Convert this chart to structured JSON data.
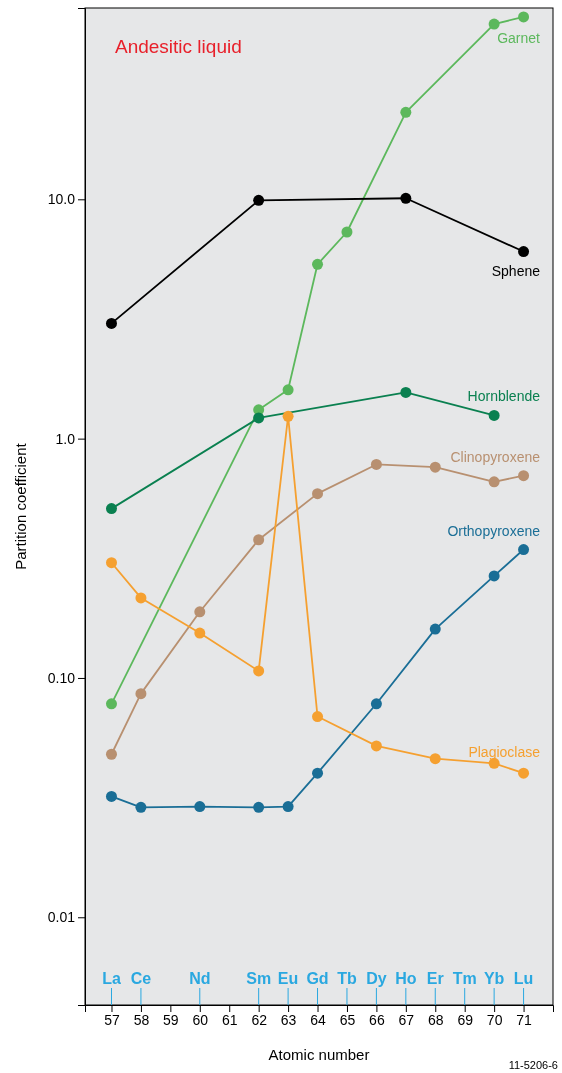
{
  "chart_data": {
    "type": "line",
    "title": "Andesitic liquid",
    "xlabel": "Atomic number",
    "ylabel": "Partition coefficient",
    "log": "y",
    "grid": false,
    "marker": "circle",
    "line_style": "solid",
    "xlim": [
      56.1,
      72.0
    ],
    "xticks": [
      57,
      58,
      59,
      60,
      61,
      62,
      63,
      64,
      65,
      66,
      67,
      68,
      69,
      70,
      71
    ],
    "ylim": [
      0.0043,
      63
    ],
    "yticks": [
      0.01,
      {
        "value": 0.1,
        "label": "0.10"
      },
      {
        "value": 1,
        "label": "1.0"
      },
      {
        "value": 10,
        "label": "10.0"
      }
    ],
    "annotations": [
      "11-5206-6",
      {
        "text": "La",
        "x": 57
      },
      {
        "text": "Ce",
        "x": 58
      },
      {
        "text": "Nd",
        "x": 60
      },
      {
        "text": "Sm",
        "x": 62
      },
      {
        "text": "Eu",
        "x": 63
      },
      {
        "text": "Gd",
        "x": 64
      },
      {
        "text": "Tb",
        "x": 65
      },
      {
        "text": "Dy",
        "x": 66
      },
      {
        "text": "Ho",
        "x": 67
      },
      {
        "text": "Er",
        "x": 68
      },
      "Tm",
      {
        "text": "Yb",
        "x": 70
      },
      {
        "text": "Lu",
        "x": 71
      }
    ],
    "series": [
      {
        "name": "Garnet",
        "color": "#5cb85c",
        "x": [
          57,
          62,
          63,
          64,
          65,
          67,
          70,
          71
        ],
        "values": [
          0.078,
          1.32,
          1.6,
          5.35,
          7.3,
          23.1,
          54,
          57.8
        ]
      },
      {
        "name": "Sphene",
        "color": "#000000",
        "x": [
          57,
          62,
          67,
          71
        ],
        "values": [
          3.03,
          9.9,
          10.1,
          6.05
        ]
      },
      {
        "name": "Hornblende",
        "color": "#0a8050",
        "x": [
          57,
          62,
          67,
          70
        ],
        "values": [
          0.51,
          1.22,
          1.56,
          1.25
        ]
      },
      {
        "name": "Clinopyroxene",
        "color": "#b89070",
        "x": [
          57,
          58,
          60,
          62,
          64,
          66,
          68,
          70,
          71
        ],
        "values": [
          0.048,
          0.086,
          0.189,
          0.378,
          0.589,
          0.78,
          0.76,
          0.66,
          0.7
        ]
      },
      {
        "name": "Orthopyroxene",
        "color": "#1a6e96",
        "x": [
          57,
          58,
          60,
          62,
          63,
          64,
          66,
          68,
          70,
          71
        ],
        "values": [
          0.032,
          0.0288,
          0.029,
          0.0288,
          0.029,
          0.04,
          0.078,
          0.16,
          0.267,
          0.344
        ]
      },
      {
        "name": "Plagioclase",
        "color": "#f5a030",
        "x": [
          57,
          58,
          60,
          62,
          63,
          64,
          66,
          68,
          70,
          71
        ],
        "values": [
          0.303,
          0.216,
          0.154,
          0.107,
          1.24,
          0.069,
          0.052,
          0.046,
          0.044,
          0.04
        ]
      }
    ]
  }
}
